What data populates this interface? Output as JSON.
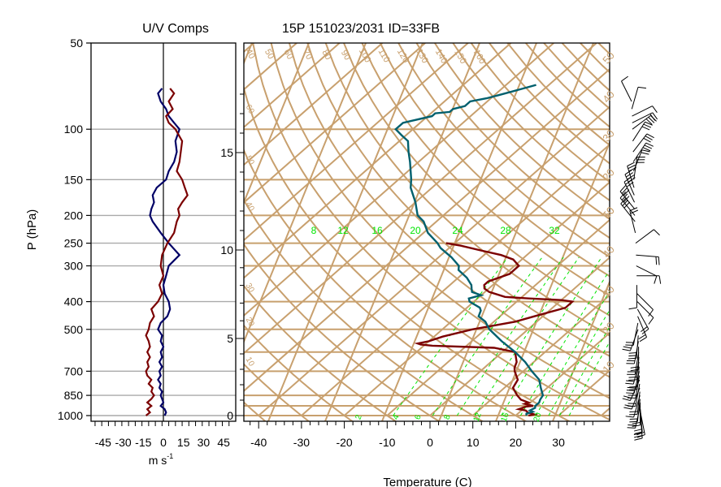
{
  "colors": {
    "background": "#ffffff",
    "isopleth": "#c8a06e",
    "temperature": "#7b0000",
    "dewpoint": "#00606e",
    "u_comp": "#000066",
    "v_comp": "#7b0000",
    "mixing_ratio": "#00e600",
    "axis": "#000000",
    "grid": "#aaaaaa"
  },
  "chart_data": [
    {
      "type": "line",
      "title": "U/V Comps",
      "xlabel": "m s",
      "xlabel_sup": "-1",
      "ylabel": "P (hPa)",
      "xlim": [
        -54,
        54
      ],
      "ylim": [
        1000,
        50
      ],
      "y_scale": "log",
      "pressure_ticks": [
        50,
        100,
        150,
        200,
        250,
        300,
        400,
        500,
        700,
        850,
        1000
      ],
      "pressure_grid": [
        100,
        150,
        200,
        250,
        300,
        400,
        500,
        700,
        850,
        1000
      ],
      "x_ticks": [
        -45,
        -30,
        -15,
        0,
        15,
        30,
        45
      ],
      "x_tick_labels": [
        "-45",
        "-30",
        "-15",
        "0",
        "15",
        "30",
        "45"
      ],
      "series": [
        {
          "key": "u",
          "profile": [
            [
              1000,
              1
            ],
            [
              975,
              2
            ],
            [
              950,
              1
            ],
            [
              925,
              -2
            ],
            [
              900,
              0
            ],
            [
              875,
              -1
            ],
            [
              850,
              -2
            ],
            [
              825,
              -1
            ],
            [
              800,
              -3
            ],
            [
              775,
              -2
            ],
            [
              750,
              -4
            ],
            [
              725,
              -2
            ],
            [
              700,
              -3
            ],
            [
              675,
              -1
            ],
            [
              650,
              -3
            ],
            [
              625,
              -1
            ],
            [
              600,
              -2
            ],
            [
              575,
              0
            ],
            [
              550,
              -2
            ],
            [
              525,
              -1
            ],
            [
              500,
              -4
            ],
            [
              475,
              -2
            ],
            [
              450,
              3
            ],
            [
              425,
              5
            ],
            [
              400,
              4
            ],
            [
              375,
              1
            ],
            [
              350,
              0
            ],
            [
              325,
              2
            ],
            [
              300,
              4
            ],
            [
              275,
              12
            ],
            [
              250,
              4
            ],
            [
              230,
              -2
            ],
            [
              210,
              -8
            ],
            [
              200,
              -10
            ],
            [
              190,
              -9
            ],
            [
              180,
              -7
            ],
            [
              170,
              -8
            ],
            [
              160,
              -5
            ],
            [
              150,
              2
            ],
            [
              140,
              4
            ],
            [
              130,
              8
            ],
            [
              120,
              10
            ],
            [
              110,
              9
            ],
            [
              100,
              12
            ],
            [
              95,
              8
            ],
            [
              90,
              4
            ],
            [
              85,
              2
            ],
            [
              80,
              -2
            ],
            [
              75,
              -4
            ],
            [
              72,
              -1
            ]
          ]
        },
        {
          "key": "v",
          "profile": [
            [
              1000,
              -13
            ],
            [
              975,
              -10
            ],
            [
              950,
              -12
            ],
            [
              925,
              -9
            ],
            [
              900,
              -12
            ],
            [
              875,
              -9
            ],
            [
              850,
              -7
            ],
            [
              825,
              -9
            ],
            [
              800,
              -8
            ],
            [
              775,
              -11
            ],
            [
              750,
              -9
            ],
            [
              725,
              -12
            ],
            [
              700,
              -13
            ],
            [
              675,
              -11
            ],
            [
              650,
              -12
            ],
            [
              625,
              -10
            ],
            [
              600,
              -12
            ],
            [
              575,
              -10
            ],
            [
              550,
              -11
            ],
            [
              525,
              -13
            ],
            [
              500,
              -11
            ],
            [
              475,
              -10
            ],
            [
              450,
              -7
            ],
            [
              425,
              -9
            ],
            [
              400,
              -4
            ],
            [
              375,
              -1
            ],
            [
              350,
              -3
            ],
            [
              325,
              0
            ],
            [
              300,
              -2
            ],
            [
              275,
              -1
            ],
            [
              250,
              3
            ],
            [
              230,
              8
            ],
            [
              210,
              10
            ],
            [
              200,
              12
            ],
            [
              190,
              11
            ],
            [
              180,
              14
            ],
            [
              170,
              18
            ],
            [
              160,
              16
            ],
            [
              150,
              14
            ],
            [
              140,
              10
            ],
            [
              130,
              12
            ],
            [
              120,
              13
            ],
            [
              110,
              14
            ],
            [
              100,
              9
            ],
            [
              95,
              4
            ],
            [
              90,
              2
            ],
            [
              85,
              7
            ],
            [
              80,
              4
            ],
            [
              75,
              8
            ],
            [
              72,
              5
            ]
          ]
        }
      ]
    },
    {
      "type": "line",
      "title": "15P 151023/2031 ID=33FB",
      "xlabel": "Temperature (C)",
      "x_ticks": [
        -40,
        -30,
        -20,
        -10,
        0,
        10,
        20,
        30
      ],
      "x_tick_labels": [
        "-40",
        "-30",
        "-20",
        "-10",
        "0",
        "10",
        "20",
        "30"
      ],
      "height_ticks_km": [
        0,
        5,
        10,
        15
      ],
      "height_tick_labels": [
        "0",
        "5",
        "10",
        "15"
      ],
      "isobars": [
        1000,
        925,
        850,
        700,
        600,
        500,
        400,
        300,
        250,
        200,
        150,
        100
      ],
      "isotherm_skew_deg_per_decade": 76,
      "dry_adiabat_labels": [
        "40",
        "50",
        "60",
        "70",
        "80",
        "90",
        "100",
        "110",
        "120",
        "130",
        "140",
        "150",
        "160"
      ],
      "mixing_ratio_labels": [
        "8",
        "12",
        "16",
        "20",
        "24",
        "28",
        "32"
      ],
      "moist_adiabat_labels": [
        "10",
        "20",
        "30",
        "40",
        "50"
      ],
      "left_adiabat_labels": [
        "60",
        "50",
        "40",
        "30",
        "20",
        "10",
        "0"
      ],
      "mixing_ratio_values_gkg": [
        2,
        4,
        6,
        8,
        12,
        16,
        20,
        24,
        28,
        32
      ],
      "mixing_ratio_bottom_labels": [
        "2",
        "4",
        "6",
        "8",
        "12",
        "16",
        "20"
      ],
      "series": [
        {
          "key": "temperature",
          "profile": [
            [
              1000,
              23
            ],
            [
              990,
              24
            ],
            [
              975,
              22
            ],
            [
              960,
              21
            ],
            [
              950,
              19
            ],
            [
              930,
              20
            ],
            [
              925,
              21.5
            ],
            [
              910,
              19
            ],
            [
              900,
              19.5
            ],
            [
              880,
              17
            ],
            [
              850,
              15
            ],
            [
              800,
              12
            ],
            [
              750,
              11
            ],
            [
              700,
              8
            ],
            [
              680,
              7
            ],
            [
              650,
              6
            ],
            [
              600,
              3
            ],
            [
              580,
              -3
            ],
            [
              570,
              -18
            ],
            [
              565,
              -21
            ],
            [
              560,
              -22
            ],
            [
              550,
              -20
            ],
            [
              530,
              -18
            ],
            [
              500,
              -13
            ],
            [
              470,
              -5
            ],
            [
              450,
              -2
            ],
            [
              420,
              3
            ],
            [
              400,
              3
            ],
            [
              395,
              0
            ],
            [
              390,
              -8
            ],
            [
              385,
              -14
            ],
            [
              370,
              -19
            ],
            [
              360,
              -21
            ],
            [
              350,
              -22
            ],
            [
              340,
              -22
            ],
            [
              320,
              -19
            ],
            [
              300,
              -19
            ],
            [
              285,
              -22
            ],
            [
              275,
              -26
            ],
            [
              265,
              -32
            ],
            [
              255,
              -38
            ],
            [
              250,
              -42
            ]
          ]
        },
        {
          "key": "dewpoint",
          "profile": [
            [
              1000,
              22.5
            ],
            [
              985,
              22
            ],
            [
              970,
              23
            ],
            [
              960,
              22
            ],
            [
              940,
              22.5
            ],
            [
              925,
              22
            ],
            [
              900,
              22
            ],
            [
              880,
              21.5
            ],
            [
              850,
              21
            ],
            [
              800,
              18.5
            ],
            [
              750,
              16
            ],
            [
              700,
              12
            ],
            [
              650,
              8
            ],
            [
              600,
              3
            ],
            [
              550,
              -3
            ],
            [
              500,
              -9
            ],
            [
              470,
              -12
            ],
            [
              450,
              -15
            ],
            [
              430,
              -16
            ],
            [
              420,
              -17
            ],
            [
              400,
              -21
            ],
            [
              390,
              -22
            ],
            [
              380,
              -20
            ],
            [
              370,
              -23
            ],
            [
              360,
              -24
            ],
            [
              350,
              -25
            ],
            [
              330,
              -28
            ],
            [
              310,
              -32
            ],
            [
              300,
              -33
            ],
            [
              280,
              -37
            ],
            [
              260,
              -42
            ],
            [
              250,
              -44
            ],
            [
              230,
              -49
            ],
            [
              210,
              -53
            ],
            [
              200,
              -56
            ],
            [
              180,
              -60
            ],
            [
              160,
              -65
            ],
            [
              150,
              -67
            ],
            [
              130,
              -72
            ],
            [
              120,
              -75
            ],
            [
              110,
              -78
            ],
            [
              105,
              -81
            ],
            [
              100,
              -84
            ],
            [
              95,
              -84
            ],
            [
              90,
              -79
            ],
            [
              88,
              -79
            ],
            [
              87,
              -76
            ],
            [
              85,
              -76
            ],
            [
              83,
              -74
            ],
            [
              80,
              -74
            ],
            [
              78,
              -71
            ],
            [
              76,
              -69
            ],
            [
              73,
              -66
            ],
            [
              70,
              -63
            ]
          ]
        }
      ]
    }
  ]
}
